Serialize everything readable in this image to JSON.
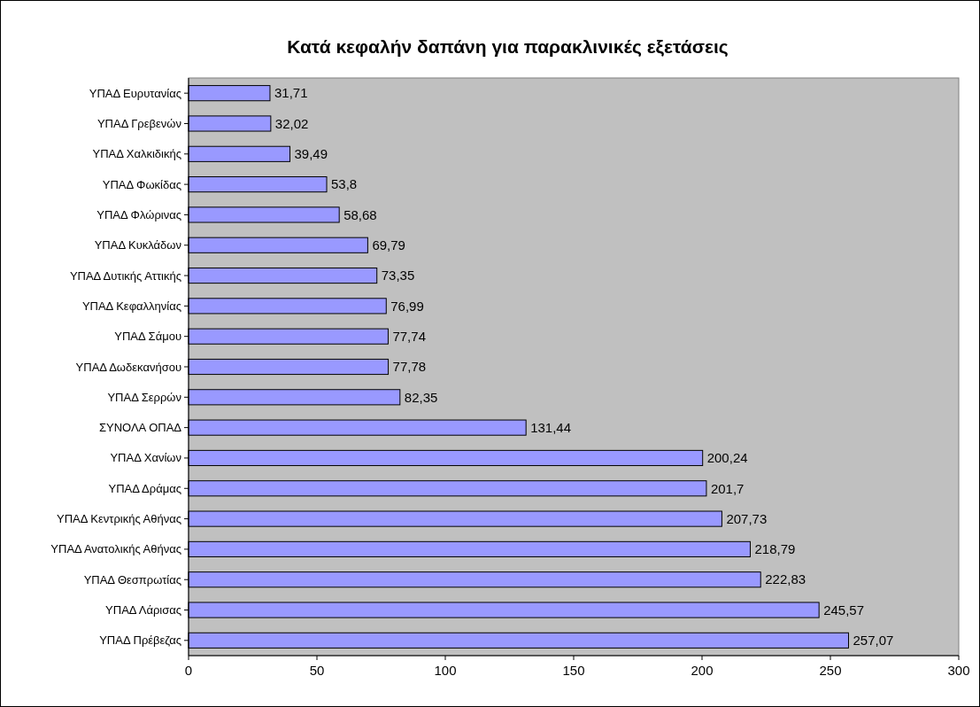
{
  "chart_data": {
    "type": "bar",
    "orientation": "horizontal",
    "title": "Κατά κεφαλήν δαπάνη για παρακλινικές εξετάσεις",
    "categories": [
      "ΥΠΑΔ Ευρυτανίας",
      "ΥΠΑΔ Γρεβενών",
      "ΥΠΑΔ Χαλκιδικής",
      "ΥΠΑΔ Φωκίδας",
      "ΥΠΑΔ Φλώρινας",
      "ΥΠΑΔ Κυκλάδων",
      "ΥΠΑΔ Δυτικής Αττικής",
      "ΥΠΑΔ Κεφαλληνίας",
      "ΥΠΑΔ Σάμου",
      "ΥΠΑΔ Δωδεκανήσου",
      "ΥΠΑΔ Σερρών",
      "ΣΥΝΟΛΑ ΟΠΑΔ",
      "ΥΠΑΔ Χανίων",
      "ΥΠΑΔ Δράμας",
      "ΥΠΑΔ Κεντρικής Αθήνας",
      "ΥΠΑΔ Ανατολικής Αθήνας",
      "ΥΠΑΔ Θεσπρωτίας",
      "ΥΠΑΔ Λάρισας",
      "ΥΠΑΔ Πρέβεζας"
    ],
    "values": [
      31.71,
      32.02,
      39.49,
      53.8,
      58.68,
      69.79,
      73.35,
      76.99,
      77.74,
      77.78,
      82.35,
      131.44,
      200.24,
      201.7,
      207.73,
      218.79,
      222.83,
      245.57,
      257.07
    ],
    "value_labels": [
      "31,71",
      "32,02",
      "39,49",
      "53,8",
      "58,68",
      "69,79",
      "73,35",
      "76,99",
      "77,74",
      "77,78",
      "82,35",
      "131,44",
      "200,24",
      "201,7",
      "207,73",
      "218,79",
      "222,83",
      "245,57",
      "257,07"
    ],
    "color": "#9999ff",
    "xlim": [
      0,
      300
    ],
    "xticks": [
      0,
      50,
      100,
      150,
      200,
      250,
      300
    ],
    "grid": false
  }
}
